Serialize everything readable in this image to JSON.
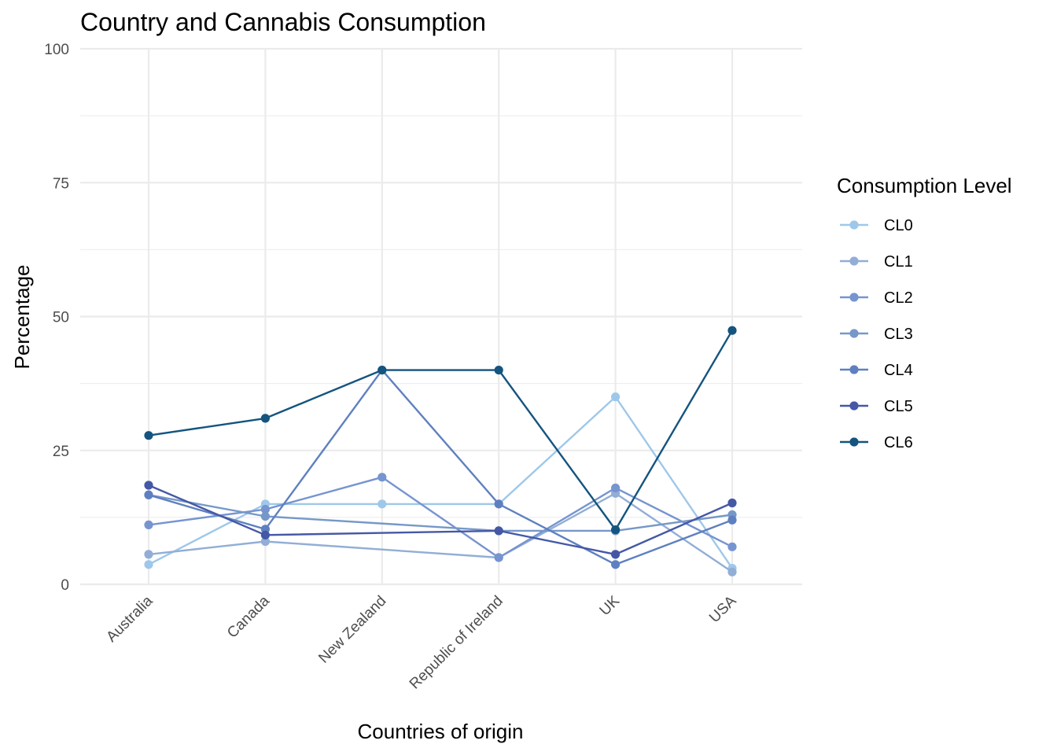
{
  "chart_data": {
    "type": "line",
    "title": "Country and Cannabis Consumption",
    "xlabel": "Countries of origin",
    "ylabel": "Percentage",
    "ylim": [
      0,
      100
    ],
    "yticks": [
      0,
      25,
      50,
      75,
      100
    ],
    "grid": true,
    "legend_title": "Consumption Level",
    "legend_position": "right",
    "categories": [
      "Australia",
      "Canada",
      "New Zealand",
      "Republic of Ireland",
      "UK",
      "USA"
    ],
    "series": [
      {
        "name": "CL0",
        "color": "#9ec8ea",
        "values": [
          3.7,
          15.0,
          15.0,
          15.0,
          35.0,
          3.0
        ]
      },
      {
        "name": "CL1",
        "color": "#92aed6",
        "values": [
          5.6,
          8.0,
          null,
          5.0,
          17.0,
          2.3
        ]
      },
      {
        "name": "CL2",
        "color": "#7694d0",
        "values": [
          11.1,
          14.0,
          20.0,
          5.0,
          18.0,
          7.0
        ]
      },
      {
        "name": "CL3",
        "color": "#7698c8",
        "values": [
          16.7,
          12.7,
          null,
          10.0,
          10.0,
          13.0
        ]
      },
      {
        "name": "CL4",
        "color": "#5f80c0",
        "values": [
          16.7,
          10.3,
          40.0,
          15.0,
          3.7,
          12.0
        ]
      },
      {
        "name": "CL5",
        "color": "#4558a6",
        "values": [
          18.5,
          9.2,
          null,
          10.0,
          5.6,
          15.2
        ]
      },
      {
        "name": "CL6",
        "color": "#14547f",
        "values": [
          27.8,
          31.0,
          40.0,
          40.0,
          10.2,
          47.4
        ]
      }
    ]
  }
}
